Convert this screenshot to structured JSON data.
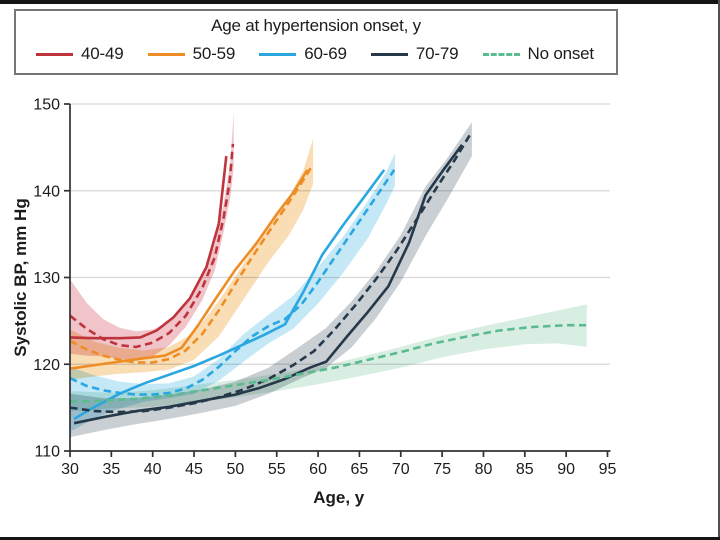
{
  "chart_data": {
    "type": "line",
    "title": "",
    "xlabel": "Age, y",
    "ylabel": "Systolic BP, mm Hg",
    "xlim": [
      30,
      95
    ],
    "ylim": [
      110,
      150
    ],
    "xticks": [
      30,
      35,
      40,
      45,
      50,
      55,
      60,
      65,
      70,
      75,
      80,
      85,
      90,
      95
    ],
    "yticks": [
      110,
      120,
      130,
      140,
      150
    ],
    "grid": "horizontal",
    "legend": {
      "title": "Age at hypertension onset, y",
      "position": "top"
    },
    "colors": {
      "grid": "#d7d7d7",
      "axis": "#323232",
      "text": "#1c1c1c"
    },
    "series": [
      {
        "name": "40-49",
        "color": "#bf333c",
        "band_color": "#f0c4c8",
        "legend_dash": false,
        "solid": [
          [
            30,
            123.1
          ],
          [
            33,
            123.0
          ],
          [
            36,
            123.0
          ],
          [
            38.5,
            123.1
          ],
          [
            40.5,
            123.9
          ],
          [
            42.5,
            125.4
          ],
          [
            44.5,
            127.6
          ],
          [
            46.5,
            131.2
          ],
          [
            48,
            136.2
          ],
          [
            48.9,
            144.0
          ]
        ],
        "dashed": [
          [
            30,
            125.6
          ],
          [
            32,
            124.1
          ],
          [
            34,
            122.9
          ],
          [
            36,
            122.2
          ],
          [
            38,
            122.0
          ],
          [
            40,
            122.5
          ],
          [
            42,
            123.6
          ],
          [
            44,
            125.6
          ],
          [
            46,
            128.8
          ],
          [
            47.5,
            132.3
          ],
          [
            48.6,
            137.0
          ],
          [
            49.3,
            141.0
          ],
          [
            49.7,
            145.4
          ]
        ],
        "band": {
          "x": [
            30,
            32,
            34,
            36,
            38,
            40,
            42,
            44,
            46,
            47.5,
            48.6,
            49.4,
            49.8
          ],
          "upper": [
            129.8,
            127.1,
            125.2,
            124.2,
            123.8,
            124.0,
            124.9,
            126.9,
            130.2,
            133.8,
            138.6,
            143.3,
            149.0
          ],
          "lower": [
            121.2,
            121.0,
            120.9,
            120.6,
            120.4,
            120.9,
            122.2,
            124.3,
            127.4,
            130.8,
            135.4,
            139.3,
            142.6
          ]
        }
      },
      {
        "name": "50-59",
        "color": "#ee8d26",
        "band_color": "#f9ddb4",
        "legend_dash": false,
        "solid": [
          [
            30,
            119.5
          ],
          [
            33,
            119.9
          ],
          [
            36,
            120.3
          ],
          [
            39,
            120.7
          ],
          [
            41.5,
            121.0
          ],
          [
            43.5,
            121.9
          ],
          [
            45.5,
            124.5
          ],
          [
            47.5,
            127.4
          ],
          [
            50,
            130.9
          ],
          [
            52.5,
            133.9
          ],
          [
            55,
            137.3
          ],
          [
            57,
            139.8
          ],
          [
            58.7,
            142.4
          ]
        ],
        "dashed": [
          [
            30,
            122.7
          ],
          [
            32,
            121.7
          ],
          [
            34,
            121.0
          ],
          [
            36,
            120.5
          ],
          [
            38,
            120.2
          ],
          [
            40,
            120.2
          ],
          [
            42,
            120.6
          ],
          [
            44,
            121.6
          ],
          [
            46,
            123.5
          ],
          [
            48,
            126.2
          ],
          [
            50,
            129.3
          ],
          [
            52,
            132.3
          ],
          [
            54,
            135.2
          ],
          [
            56,
            138.0
          ],
          [
            57.8,
            140.6
          ],
          [
            59.3,
            142.9
          ]
        ],
        "band": {
          "x": [
            30,
            33,
            36,
            39,
            42,
            45,
            48,
            51,
            54,
            56.5,
            58.2,
            59.4
          ],
          "upper": [
            124.0,
            122.6,
            121.9,
            121.6,
            122.0,
            123.6,
            127.3,
            131.6,
            136.0,
            139.3,
            142.3,
            146.0
          ],
          "lower": [
            118.2,
            118.6,
            118.9,
            119.1,
            119.4,
            120.5,
            123.2,
            127.5,
            131.8,
            134.9,
            137.8,
            140.8
          ]
        }
      },
      {
        "name": "60-69",
        "color": "#2aa7e0",
        "band_color": "#c5e8f7",
        "legend_dash": false,
        "solid": [
          [
            30.5,
            113.7
          ],
          [
            33,
            115.1
          ],
          [
            36,
            116.6
          ],
          [
            39,
            117.8
          ],
          [
            42,
            118.8
          ],
          [
            45,
            119.8
          ],
          [
            48,
            121.0
          ],
          [
            51,
            122.3
          ],
          [
            53.5,
            123.4
          ],
          [
            56,
            124.6
          ],
          [
            58.2,
            128.3
          ],
          [
            60.5,
            132.6
          ],
          [
            63,
            136.0
          ],
          [
            65.5,
            139.2
          ],
          [
            68,
            142.4
          ]
        ],
        "dashed": [
          [
            30,
            118.4
          ],
          [
            32,
            117.5
          ],
          [
            34,
            117.0
          ],
          [
            36,
            116.7
          ],
          [
            38,
            116.5
          ],
          [
            40,
            116.5
          ],
          [
            42,
            116.7
          ],
          [
            44,
            117.2
          ],
          [
            46,
            118.2
          ],
          [
            48,
            119.7
          ],
          [
            50,
            121.5
          ],
          [
            52,
            123.2
          ],
          [
            54,
            124.4
          ],
          [
            56,
            125.2
          ],
          [
            58,
            126.9
          ],
          [
            60,
            129.5
          ],
          [
            62,
            132.3
          ],
          [
            64,
            135.1
          ],
          [
            66,
            137.9
          ],
          [
            67.5,
            140.0
          ],
          [
            69.2,
            142.4
          ]
        ],
        "band": {
          "x": [
            30,
            33,
            36,
            39,
            42,
            45,
            48,
            51,
            54,
            57,
            60,
            63,
            66,
            68.2,
            69.3
          ],
          "upper": [
            119.7,
            118.7,
            118.0,
            117.7,
            117.8,
            118.6,
            120.6,
            123.5,
            125.7,
            127.9,
            131.2,
            134.7,
            138.8,
            142.1,
            144.3
          ],
          "lower": [
            112.2,
            113.8,
            114.9,
            115.7,
            116.1,
            116.6,
            118.1,
            120.3,
            122.4,
            124.1,
            127.0,
            130.5,
            134.5,
            138.4,
            140.6
          ]
        }
      },
      {
        "name": "70-79",
        "color": "#26394a",
        "band_color": "#c9cfd3",
        "legend_dash": false,
        "solid": [
          [
            30.5,
            113.2
          ],
          [
            34,
            113.9
          ],
          [
            38,
            114.6
          ],
          [
            42,
            115.1
          ],
          [
            46,
            115.8
          ],
          [
            50,
            116.5
          ],
          [
            53,
            117.3
          ],
          [
            56,
            118.3
          ],
          [
            59,
            119.6
          ],
          [
            61,
            120.3
          ],
          [
            63.5,
            123.2
          ],
          [
            66,
            126.0
          ],
          [
            68.5,
            129.0
          ],
          [
            71,
            134.0
          ],
          [
            73,
            139.5
          ],
          [
            75,
            142.2
          ],
          [
            77.4,
            145.3
          ]
        ],
        "dashed": [
          [
            30,
            115.0
          ],
          [
            33,
            114.6
          ],
          [
            36,
            114.5
          ],
          [
            39,
            114.6
          ],
          [
            42,
            115.0
          ],
          [
            45,
            115.5
          ],
          [
            48,
            116.2
          ],
          [
            51,
            117.1
          ],
          [
            54,
            118.3
          ],
          [
            57,
            119.9
          ],
          [
            59.5,
            121.5
          ],
          [
            62,
            124.0
          ],
          [
            64.5,
            126.8
          ],
          [
            67,
            129.8
          ],
          [
            69.5,
            133.1
          ],
          [
            72,
            136.8
          ],
          [
            74.5,
            140.6
          ],
          [
            76.5,
            143.5
          ],
          [
            78.4,
            146.5
          ]
        ],
        "band": {
          "x": [
            30,
            34,
            38,
            42,
            46,
            50,
            54,
            58,
            61,
            64,
            67,
            70,
            73,
            75.5,
            77.6,
            78.6
          ],
          "upper": [
            116.6,
            116.1,
            116.1,
            116.5,
            117.1,
            118.0,
            119.6,
            122.2,
            124.2,
            127.2,
            130.7,
            134.9,
            140.5,
            143.6,
            146.5,
            147.9
          ],
          "lower": [
            111.6,
            112.4,
            113.1,
            113.7,
            114.4,
            115.2,
            116.6,
            118.4,
            119.6,
            121.9,
            125.3,
            129.5,
            134.8,
            138.8,
            142.3,
            144.0
          ]
        }
      },
      {
        "name": "No onset",
        "color": "#5cba90",
        "band_color": "#d9eee3",
        "legend_dash": true,
        "dashed": [
          [
            30,
            115.7
          ],
          [
            34,
            115.8
          ],
          [
            38,
            116.0
          ],
          [
            42,
            116.4
          ],
          [
            46,
            117.0
          ],
          [
            50,
            117.6
          ],
          [
            54,
            118.2
          ],
          [
            58,
            118.9
          ],
          [
            62,
            119.6
          ],
          [
            66,
            120.5
          ],
          [
            70,
            121.4
          ],
          [
            74,
            122.4
          ],
          [
            78,
            123.2
          ],
          [
            82,
            123.9
          ],
          [
            86,
            124.3
          ],
          [
            90,
            124.5
          ],
          [
            92.4,
            124.5
          ]
        ],
        "band": {
          "x": [
            30,
            35,
            40,
            45,
            50,
            55,
            60,
            65,
            70,
            75,
            80,
            85,
            89,
            92.5
          ],
          "upper": [
            116.9,
            116.7,
            117.0,
            117.6,
            118.2,
            118.9,
            119.7,
            120.8,
            122.0,
            123.3,
            124.4,
            125.4,
            126.2,
            126.9
          ],
          "lower": [
            114.6,
            114.9,
            115.1,
            115.6,
            116.2,
            116.9,
            117.7,
            118.6,
            119.6,
            120.8,
            121.7,
            122.3,
            122.4,
            122.0
          ]
        }
      }
    ]
  }
}
